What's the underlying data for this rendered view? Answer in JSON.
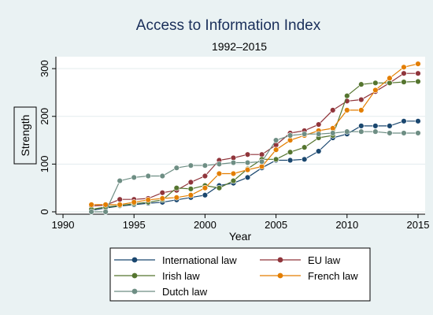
{
  "chart_data": {
    "type": "line",
    "title": "Access to Information Index",
    "subtitle": "1992–2015",
    "xlabel": "Year",
    "ylabel": "Strength",
    "xlim": [
      1989.5,
      2015.5
    ],
    "ylim": [
      -5,
      325
    ],
    "x_ticks": [
      1990,
      1995,
      2000,
      2005,
      2010,
      2015
    ],
    "y_ticks": [
      0,
      100,
      200,
      300
    ],
    "grid": "horizontal",
    "legend_position": "bottom",
    "x": [
      1992,
      1993,
      1994,
      1995,
      1996,
      1997,
      1998,
      1999,
      2000,
      2001,
      2002,
      2003,
      2004,
      2005,
      2006,
      2007,
      2008,
      2009,
      2010,
      2011,
      2012,
      2013,
      2014,
      2015
    ],
    "series": [
      {
        "name": "International law",
        "color": "#1a476f",
        "values": [
          3,
          8,
          12,
          15,
          18,
          20,
          25,
          30,
          35,
          55,
          60,
          72,
          92,
          108,
          108,
          110,
          127,
          155,
          163,
          180,
          180,
          180,
          190,
          190
        ]
      },
      {
        "name": "EU law",
        "color": "#90353b",
        "values": [
          12,
          14,
          26,
          26,
          28,
          40,
          45,
          62,
          75,
          108,
          113,
          120,
          120,
          140,
          165,
          170,
          183,
          213,
          232,
          235,
          252,
          270,
          290,
          290
        ]
      },
      {
        "name": "Irish law",
        "color": "#55752f",
        "values": [
          5,
          10,
          13,
          17,
          20,
          25,
          50,
          48,
          55,
          50,
          65,
          90,
          110,
          110,
          125,
          135,
          155,
          160,
          243,
          267,
          270,
          270,
          272,
          273
        ]
      },
      {
        "name": "French law",
        "color": "#e37e00",
        "values": [
          15,
          15,
          15,
          20,
          25,
          28,
          30,
          35,
          50,
          80,
          80,
          88,
          95,
          130,
          150,
          160,
          170,
          175,
          213,
          213,
          255,
          280,
          303,
          310
        ]
      },
      {
        "name": "Dutch law",
        "color": "#6e8e84",
        "values": [
          0,
          0,
          65,
          72,
          75,
          75,
          92,
          97,
          97,
          100,
          103,
          103,
          105,
          150,
          160,
          163,
          163,
          165,
          168,
          168,
          168,
          165,
          165,
          165
        ]
      }
    ]
  }
}
